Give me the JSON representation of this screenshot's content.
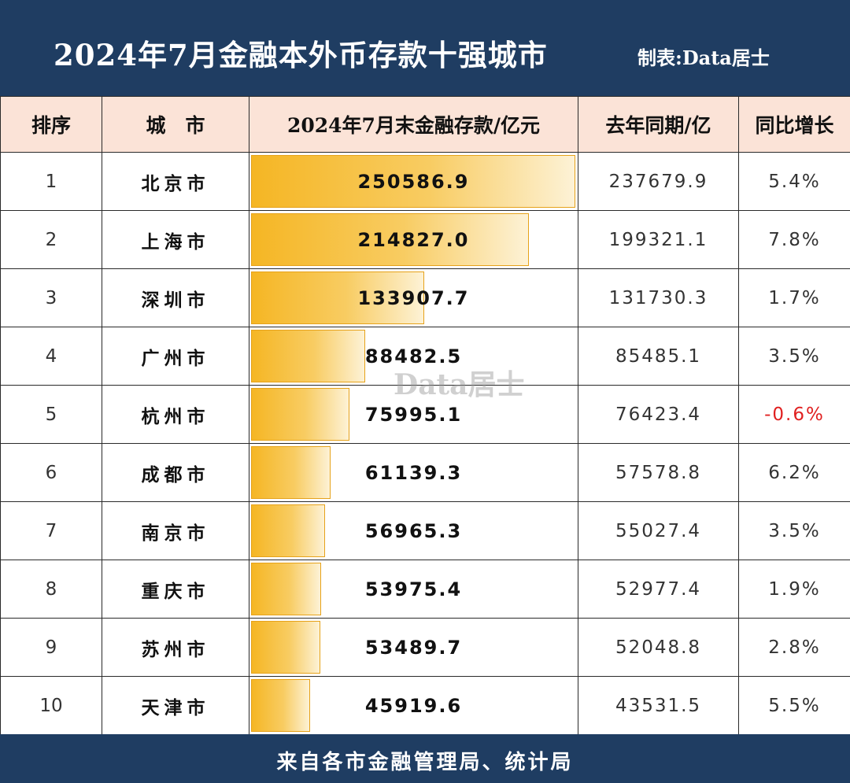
{
  "header": {
    "title": "2024年7月金融本外币存款十强城市",
    "credit": "制表:Data居士"
  },
  "watermark": "Data居士",
  "footer": {
    "source": "来自各市金融管理局、统计局"
  },
  "chart_data": {
    "type": "table",
    "title": "2024年7月金融本外币存款十强城市",
    "columns": [
      "排序",
      "城　市",
      "2024年7月末金融存款/亿元",
      "去年同期/亿",
      "同比增长"
    ],
    "rows": [
      {
        "rank": "1",
        "city": "北京市",
        "deposit": 250586.9,
        "deposit_label": "250586.9",
        "prev": "237679.9",
        "growth": "5.4%"
      },
      {
        "rank": "2",
        "city": "上海市",
        "deposit": 214827.0,
        "deposit_label": "214827.0",
        "prev": "199321.1",
        "growth": "7.8%"
      },
      {
        "rank": "3",
        "city": "深圳市",
        "deposit": 133907.7,
        "deposit_label": "133907.7",
        "prev": "131730.3",
        "growth": "1.7%"
      },
      {
        "rank": "4",
        "city": "广州市",
        "deposit": 88482.5,
        "deposit_label": "88482.5",
        "prev": "85485.1",
        "growth": "3.5%"
      },
      {
        "rank": "5",
        "city": "杭州市",
        "deposit": 75995.1,
        "deposit_label": "75995.1",
        "prev": "76423.4",
        "growth": "-0.6%"
      },
      {
        "rank": "6",
        "city": "成都市",
        "deposit": 61139.3,
        "deposit_label": "61139.3",
        "prev": "57578.8",
        "growth": "6.2%"
      },
      {
        "rank": "7",
        "city": "南京市",
        "deposit": 56965.3,
        "deposit_label": "56965.3",
        "prev": "55027.4",
        "growth": "3.5%"
      },
      {
        "rank": "8",
        "city": "重庆市",
        "deposit": 53975.4,
        "deposit_label": "53975.4",
        "prev": "52977.4",
        "growth": "1.9%"
      },
      {
        "rank": "9",
        "city": "苏州市",
        "deposit": 53489.7,
        "deposit_label": "53489.7",
        "prev": "52048.8",
        "growth": "2.8%"
      },
      {
        "rank": "10",
        "city": "天津市",
        "deposit": 45919.6,
        "deposit_label": "45919.6",
        "prev": "43531.5",
        "growth": "5.5%"
      }
    ],
    "bar_color": "#f5b624",
    "negative_color": "#e02020"
  }
}
